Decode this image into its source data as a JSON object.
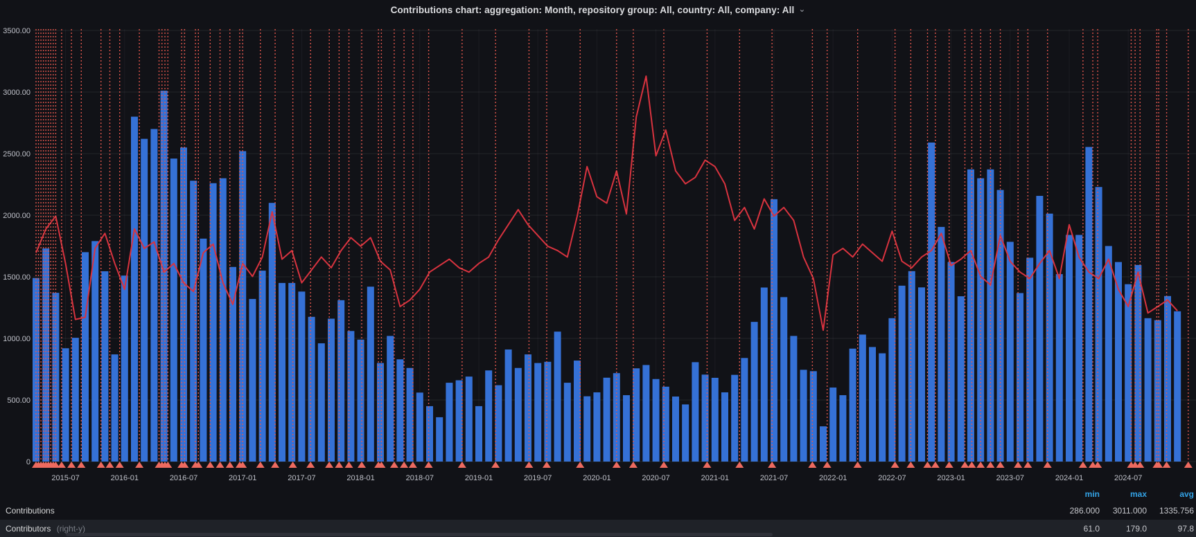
{
  "header": {
    "title": "Contributions chart: aggregation: Month, repository group: All, country: All, company: All",
    "chevron": "⌄"
  },
  "colors": {
    "background": "#111217",
    "bar": "#3571d6",
    "line": "#d9333f",
    "annotation": "#e8584e",
    "annotation_marker": "#ed6a5f",
    "grid": "rgba(204,204,220,0.10)",
    "grid_v": "rgba(204,204,220,0.06)",
    "axis_text": "#bfc1c9",
    "legend_header": "#33a2e5",
    "text_primary": "#d8d9da",
    "text_dim": "#7b7f87",
    "row_highlight": "#1f2228"
  },
  "chart_data": {
    "type": "bar",
    "title": "Contributions by month with contributors line overlay",
    "start_month": "2015-04",
    "aggregation": "Month",
    "x_ticks": [
      "2015-07",
      "2016-01",
      "2016-07",
      "2017-01",
      "2017-07",
      "2018-01",
      "2018-07",
      "2019-01",
      "2019-07",
      "2020-01",
      "2020-07",
      "2021-01",
      "2021-07",
      "2022-01",
      "2022-07",
      "2023-01",
      "2023-07",
      "2024-01",
      "2024-07"
    ],
    "y_left_ticks": [
      {
        "value": 3500,
        "label": "3500.00"
      },
      {
        "value": 3000,
        "label": "3000.00"
      },
      {
        "value": 2500,
        "label": "2500.00"
      },
      {
        "value": 2000,
        "label": "2000.00"
      },
      {
        "value": 1500,
        "label": "1500.00"
      },
      {
        "value": 1000,
        "label": "1000.00"
      },
      {
        "value": 500,
        "label": "500.00"
      },
      {
        "value": 0,
        "label": "0"
      }
    ],
    "ylim_left": [
      0,
      3500
    ],
    "ylim_right": [
      0,
      200
    ],
    "grid": true,
    "legend_position": "bottom-table",
    "series": [
      {
        "name": "Contributions",
        "type": "bar",
        "axis": "left",
        "values": [
          1490,
          1730,
          1370,
          920,
          1005,
          1700,
          1790,
          1545,
          870,
          1510,
          2800,
          2620,
          2700,
          3011,
          2460,
          2550,
          2280,
          1810,
          2260,
          2300,
          1580,
          2520,
          1320,
          1550,
          2100,
          1450,
          1450,
          1380,
          1175,
          960,
          1160,
          1310,
          1060,
          990,
          1420,
          800,
          1020,
          830,
          760,
          560,
          450,
          360,
          640,
          660,
          690,
          450,
          740,
          620,
          910,
          760,
          870,
          800,
          810,
          1055,
          640,
          820,
          530,
          562,
          681,
          718,
          539,
          757,
          784,
          670,
          608,
          528,
          464,
          807,
          706,
          680,
          562,
          704,
          841,
          1134,
          1413,
          2130,
          1335,
          1020,
          745,
          734,
          286,
          601,
          539,
          917,
          1031,
          930,
          879,
          1164,
          1428,
          1546,
          1414,
          2590,
          1905,
          1620,
          1342,
          2372,
          2300,
          2372,
          2205,
          1784,
          1368,
          1655,
          2157,
          2013,
          1522,
          1840,
          1840,
          2554,
          2229,
          1750,
          1620,
          1440,
          1596,
          1164,
          1148,
          1344,
          1220
        ]
      },
      {
        "name": "Contributors",
        "type": "line",
        "axis": "right",
        "values": [
          97,
          108,
          114,
          92,
          66,
          67,
          99,
          106,
          92,
          80,
          108,
          99,
          102,
          88,
          92,
          83,
          79,
          97,
          101,
          83,
          73,
          92,
          86,
          95,
          116,
          94,
          98,
          83,
          89,
          95,
          90,
          98,
          104,
          100,
          104,
          93,
          89,
          72,
          75,
          80,
          88,
          91,
          94,
          90,
          88,
          92,
          95,
          103,
          110,
          117,
          110,
          105,
          100,
          98,
          95,
          114,
          137,
          123,
          120,
          135,
          115,
          160,
          179,
          142,
          154,
          135,
          129,
          132,
          140,
          137,
          129,
          112,
          118,
          108,
          122,
          114,
          118,
          112,
          95,
          85,
          61,
          96,
          99,
          95,
          101,
          97,
          93,
          107,
          93,
          90,
          95,
          98,
          106,
          91,
          94,
          98,
          86,
          82,
          105,
          93,
          88,
          85,
          92,
          98,
          85,
          110,
          95,
          88,
          85,
          94,
          80,
          72,
          88,
          69,
          72,
          75,
          70
        ]
      }
    ],
    "annotations": {
      "style": "red-dashed-vertical-with-marker",
      "month_offsets": [
        0,
        0.25,
        0.5,
        0.75,
        1,
        1.25,
        1.5,
        1.75,
        2,
        2.6,
        3.6,
        4.6,
        6.6,
        7.5,
        8.5,
        10.5,
        12.5,
        12.8,
        13.1,
        13.4,
        14.8,
        15.1,
        16.2,
        16.5,
        17.7,
        18.7,
        19.7,
        20.7,
        21,
        22.8,
        24.3,
        26.1,
        27.9,
        29.8,
        30.8,
        31.8,
        33.1,
        34.8,
        35.1,
        36.4,
        37.4,
        38.3,
        39.9,
        43.3,
        46.7,
        50.1,
        51.9,
        55.3,
        59,
        60.7,
        63.8,
        68.2,
        71.5,
        74.8,
        78.9,
        80.4,
        83.5,
        87.3,
        88.9,
        90.6,
        91.4,
        92.8,
        94.4,
        95.1,
        96,
        97,
        98,
        99.8,
        100.8,
        102.8,
        106.4,
        107.4,
        107.9,
        111.3,
        111.7,
        112.2,
        113.9,
        114.1,
        114.9,
        117.1
      ]
    }
  },
  "legend": {
    "stat_headers": [
      "min",
      "max",
      "avg"
    ],
    "rows": [
      {
        "label": "Contributions",
        "axis_note": "",
        "min": "286.000",
        "max": "3011.000",
        "avg": "1335.756"
      },
      {
        "label": "Contributors",
        "axis_note": "(right-y)",
        "min": "61.0",
        "max": "179.0",
        "avg": "97.8"
      }
    ]
  }
}
